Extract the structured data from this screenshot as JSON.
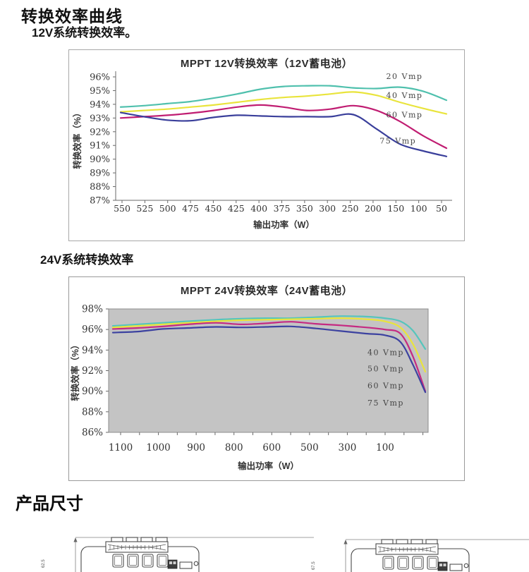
{
  "page": {
    "title": "转换效率曲线",
    "subtitle_12v": "12V系统转换效率。",
    "subtitle_24v": "24V系统转换效率",
    "section_dimensions": "产品尺寸"
  },
  "chart_data": [
    {
      "type": "line",
      "title": "MPPT 12V转换效率（12V蓄电池）",
      "xlabel": "输出功率（W）",
      "ylabel": "转换效率（%）",
      "ylim": [
        87,
        96
      ],
      "grid": false,
      "plot_bg": "#ffffff",
      "legend_position": "inline-right",
      "y_tick_labels": [
        "96%",
        "95%",
        "94%",
        "93%",
        "92%",
        "91%",
        "90%",
        "89%",
        "88%",
        "87%"
      ],
      "x_tick_labels": [
        "550",
        "525",
        "500",
        "475",
        "450",
        "425",
        "400",
        "375",
        "350",
        "300",
        "250",
        "200",
        "150",
        "100",
        "50"
      ],
      "series": [
        {
          "name": "20 Vmp",
          "color": "#4fc0ad",
          "values": [
            93.8,
            93.9,
            94.05,
            94.2,
            94.45,
            94.75,
            95.1,
            95.3,
            95.35,
            95.35,
            95.2,
            95.15,
            95.25,
            94.95,
            94.3
          ]
        },
        {
          "name": "40 Vmp",
          "color": "#e9e43c",
          "values": [
            93.45,
            93.55,
            93.65,
            93.8,
            93.95,
            94.15,
            94.35,
            94.5,
            94.6,
            94.75,
            94.9,
            94.65,
            94.15,
            93.7,
            93.3
          ]
        },
        {
          "name": "60 Vmp",
          "color": "#c01d72",
          "values": [
            93.0,
            93.1,
            93.2,
            93.35,
            93.55,
            93.8,
            93.95,
            93.8,
            93.55,
            93.65,
            93.9,
            93.55,
            92.75,
            91.7,
            90.8
          ]
        },
        {
          "name": "75 Vmp",
          "color": "#3a3f9b",
          "values": [
            93.4,
            93.1,
            92.85,
            92.8,
            93.05,
            93.2,
            93.15,
            93.1,
            93.1,
            93.1,
            93.25,
            92.2,
            91.1,
            90.6,
            90.2
          ]
        }
      ],
      "series_labels": [
        {
          "text": "20 Vmp",
          "fx": 0.815,
          "value": 96.0
        },
        {
          "text": "40 Vmp",
          "fx": 0.815,
          "value": 94.6
        },
        {
          "text": "60 Vmp",
          "fx": 0.815,
          "value": 93.2
        },
        {
          "text": "75 Vmp",
          "fx": 0.795,
          "value": 91.3
        }
      ]
    },
    {
      "type": "line",
      "title": "MPPT 24V转换效率（24V蓄电池）",
      "xlabel": "输出功率（W）",
      "ylabel": "转换效率（%）",
      "ylim": [
        86,
        98
      ],
      "grid": false,
      "plot_bg": "#c4c4c4",
      "legend_position": "inline-right",
      "y_tick_labels": [
        "98%",
        "96%",
        "94%",
        "92%",
        "90%",
        "88%",
        "86%"
      ],
      "x_tick_labels": [
        "1100",
        "1000",
        "900",
        "800",
        "600",
        "500",
        "300",
        "100"
      ],
      "x_positions": [
        0,
        0.08,
        0.16,
        0.24,
        0.33,
        0.41,
        0.49,
        0.57,
        0.65,
        0.73,
        0.81,
        0.87,
        0.92,
        0.96,
        1.0
      ],
      "series": [
        {
          "name": "40 Vmp",
          "color": "#56c5bc",
          "values": [
            96.35,
            96.5,
            96.65,
            96.8,
            96.95,
            97.05,
            97.1,
            97.1,
            97.2,
            97.3,
            97.25,
            97.1,
            96.8,
            95.9,
            94.1
          ]
        },
        {
          "name": "50 Vmp",
          "color": "#e9e43c",
          "values": [
            96.2,
            96.35,
            96.5,
            96.65,
            96.8,
            96.9,
            96.95,
            97.0,
            97.05,
            97.1,
            97.0,
            96.8,
            96.2,
            94.6,
            91.9
          ]
        },
        {
          "name": "60 Vmp",
          "color": "#c52a82",
          "values": [
            96.05,
            96.15,
            96.3,
            96.5,
            96.65,
            96.5,
            96.6,
            96.75,
            96.55,
            96.4,
            96.2,
            96.0,
            95.6,
            93.4,
            90.0
          ]
        },
        {
          "name": "75 Vmp",
          "color": "#3c42a0",
          "values": [
            95.7,
            95.8,
            96.05,
            96.15,
            96.25,
            96.2,
            96.25,
            96.3,
            96.1,
            95.85,
            95.6,
            95.45,
            94.8,
            92.6,
            89.9
          ]
        }
      ],
      "series_labels": [
        {
          "text": "40 Vmp",
          "fx": 0.815,
          "value": 93.7
        },
        {
          "text": "50 Vmp",
          "fx": 0.815,
          "value": 92.15
        },
        {
          "text": "60 Vmp",
          "fx": 0.815,
          "value": 90.5
        },
        {
          "text": "75 Vmp",
          "fx": 0.815,
          "value": 88.8
        }
      ]
    }
  ],
  "drawings": {
    "left": {
      "dim_label": "62.5"
    },
    "right": {
      "dim_label": "67.5"
    }
  }
}
